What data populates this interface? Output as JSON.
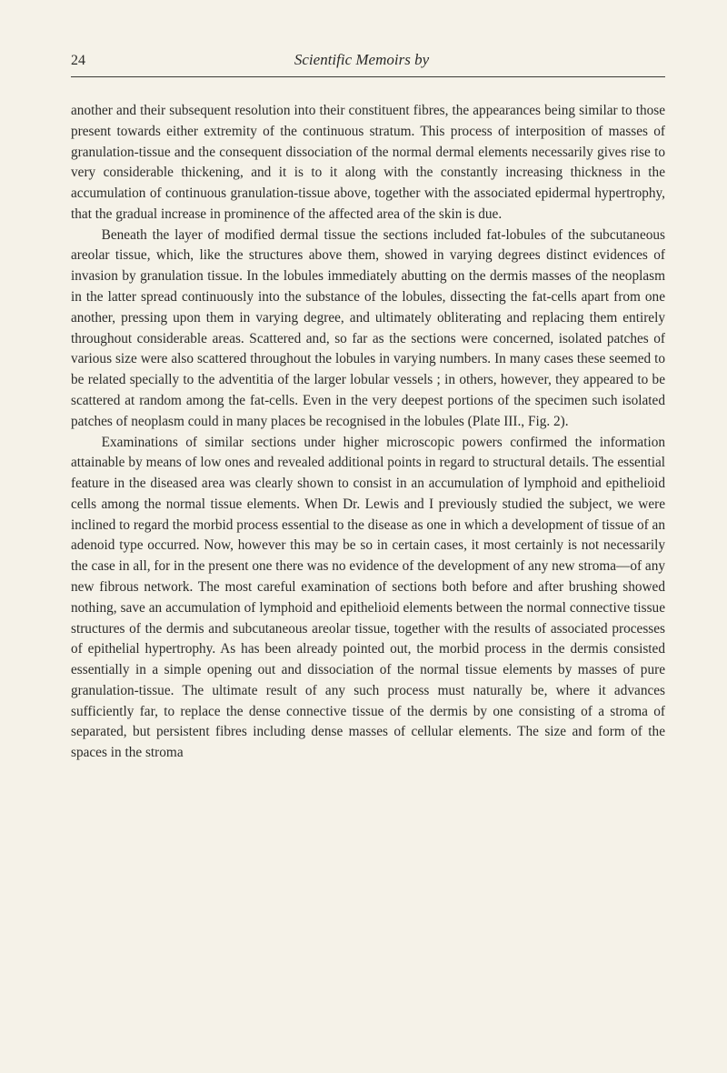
{
  "header": {
    "page_number": "24",
    "running_title": "Scientific Memoirs by"
  },
  "paragraphs": {
    "p1": "another and their subsequent resolution into their constituent fibres, the appearances being similar to those present towards either extremity of the continuous stratum. This process of interposition of masses of granulation-tissue and the consequent dissociation of the normal dermal elements necessarily gives rise to very considerable thickening, and it is to it along with the constantly increasing thickness in the accumulation of continuous granulation-tissue above, together with the associated epidermal hypertrophy, that the gradual increase in prominence of the affected area of the skin is due.",
    "p2": "Beneath the layer of modified dermal tissue the sections included fat-lobules of the subcutaneous areolar tissue, which, like the structures above them, showed in varying degrees distinct evidences of invasion by granulation tissue. In the lobules immediately abutting on the dermis masses of the neoplasm in the latter spread continuously into the substance of the lobules, dissecting the fat-cells apart from one another, pressing upon them in varying degree, and ultimately obliterating and replacing them entirely throughout considerable areas. Scattered and, so far as the sections were concerned, isolated patches of various size were also scattered throughout the lobules in varying numbers. In many cases these seemed to be related specially to the adventitia of the larger lobular vessels ; in others, however, they appeared to be scattered at random among the fat-cells. Even in the very deepest portions of the specimen such isolated patches of neoplasm could in many places be recognised in the lobules (Plate III., Fig. 2).",
    "p3": "Examinations of similar sections under higher microscopic powers confirmed the information attainable by means of low ones and revealed additional points in regard to structural details. The essential feature in the diseased area was clearly shown to consist in an accumulation of lymphoid and epithelioid cells among the normal tissue elements. When Dr. Lewis and I previously studied the subject, we were inclined to regard the morbid process essential to the disease as one in which a development of tissue of an adenoid type occurred. Now, however this may be so in certain cases, it most certainly is not necessarily the case in all, for in the present one there was no evidence of the development of any new stroma—of any new fibrous network. The most careful examination of sections both before and after brushing showed nothing, save an accumulation of lymphoid and epithelioid elements between the normal connective tissue structures of the dermis and subcutaneous areolar tissue, together with the results of associated processes of epithelial hypertrophy. As has been already pointed out, the morbid process in the dermis consisted essentially in a simple opening out and dissociation of the normal tissue elements by masses of pure granulation-tissue. The ultimate result of any such process must naturally be, where it advances sufficiently far, to replace the dense connective tissue of the dermis by one consisting of a stroma of separated, but persistent fibres including dense masses of cellular elements. The size and form of the spaces in the stroma"
  }
}
